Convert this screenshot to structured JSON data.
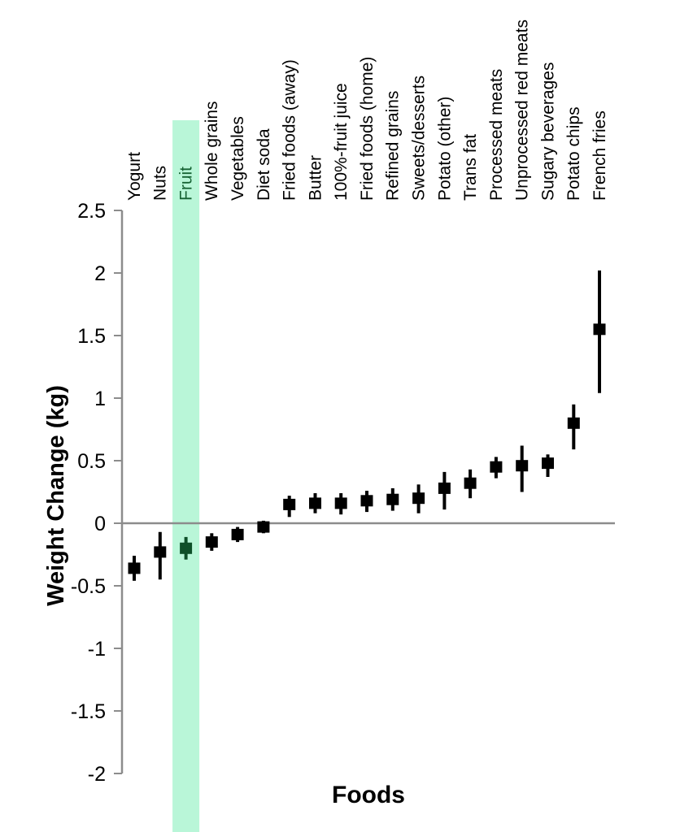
{
  "chart_data": {
    "type": "scatter",
    "subtype": "point-estimates-with-error-bars",
    "title": "",
    "xlabel": "Foods",
    "ylabel": "Weight Change (kg)",
    "ylim": [
      -2,
      2.5
    ],
    "grid": false,
    "legend": "none",
    "ytick_labels": [
      "2.5",
      "2",
      "1.5",
      "1",
      "0.5",
      "0",
      "-0.5",
      "-1",
      "-1.5",
      "-2"
    ],
    "ytick_values": [
      2.5,
      2,
      1.5,
      1,
      0.5,
      0,
      -0.5,
      -1,
      -1.5,
      -2
    ],
    "categories": [
      "Yogurt",
      "Nuts",
      "Fruit",
      "Whole grains",
      "Vegetables",
      "Diet soda",
      "Fried foods (away)",
      "Butter",
      "100%-fruit juice",
      "Fried foods (home)",
      "Refined grains",
      "Sweets/desserts",
      "Potato (other)",
      "Trans fat",
      "Processed meats",
      "Unprocessed red meats",
      "Sugary beverages",
      "Potato chips",
      "French fries"
    ],
    "points": [
      {
        "label": "Yogurt",
        "value": -0.36,
        "ci_low": -0.46,
        "ci_high": -0.26
      },
      {
        "label": "Nuts",
        "value": -0.23,
        "ci_low": -0.45,
        "ci_high": -0.07
      },
      {
        "label": "Fruit",
        "value": -0.2,
        "ci_low": -0.29,
        "ci_high": -0.11
      },
      {
        "label": "Whole grains",
        "value": -0.15,
        "ci_low": -0.22,
        "ci_high": -0.08
      },
      {
        "label": "Vegetables",
        "value": -0.09,
        "ci_low": -0.15,
        "ci_high": -0.03
      },
      {
        "label": "Diet soda",
        "value": -0.03,
        "ci_low": -0.08,
        "ci_high": 0.02
      },
      {
        "label": "Fried foods (away)",
        "value": 0.15,
        "ci_low": 0.05,
        "ci_high": 0.22
      },
      {
        "label": "Butter",
        "value": 0.16,
        "ci_low": 0.08,
        "ci_high": 0.24
      },
      {
        "label": "100%-fruit juice",
        "value": 0.16,
        "ci_low": 0.07,
        "ci_high": 0.24
      },
      {
        "label": "Fried foods (home)",
        "value": 0.18,
        "ci_low": 0.09,
        "ci_high": 0.26
      },
      {
        "label": "Refined grains",
        "value": 0.19,
        "ci_low": 0.1,
        "ci_high": 0.28
      },
      {
        "label": "Sweets/desserts",
        "value": 0.2,
        "ci_low": 0.08,
        "ci_high": 0.31
      },
      {
        "label": "Potato (other)",
        "value": 0.28,
        "ci_low": 0.11,
        "ci_high": 0.41
      },
      {
        "label": "Trans fat",
        "value": 0.32,
        "ci_low": 0.2,
        "ci_high": 0.43
      },
      {
        "label": "Processed meats",
        "value": 0.45,
        "ci_low": 0.36,
        "ci_high": 0.53
      },
      {
        "label": "Unprocessed red meats",
        "value": 0.46,
        "ci_low": 0.25,
        "ci_high": 0.62
      },
      {
        "label": "Sugary beverages",
        "value": 0.48,
        "ci_low": 0.37,
        "ci_high": 0.55
      },
      {
        "label": "Potato chips",
        "value": 0.8,
        "ci_low": 0.59,
        "ci_high": 0.95
      },
      {
        "label": "French fries",
        "value": 1.55,
        "ci_low": 1.04,
        "ci_high": 2.02
      }
    ],
    "highlight": {
      "category": "Fruit",
      "band_color": "#b9f6d8",
      "label_color": "#176334",
      "marker_color": "#0e4f28"
    },
    "colors": {
      "marker": "#000000",
      "error_bar": "#000000",
      "axis": "#8c8c8c",
      "text": "#000000",
      "background": "#ffffff"
    }
  }
}
